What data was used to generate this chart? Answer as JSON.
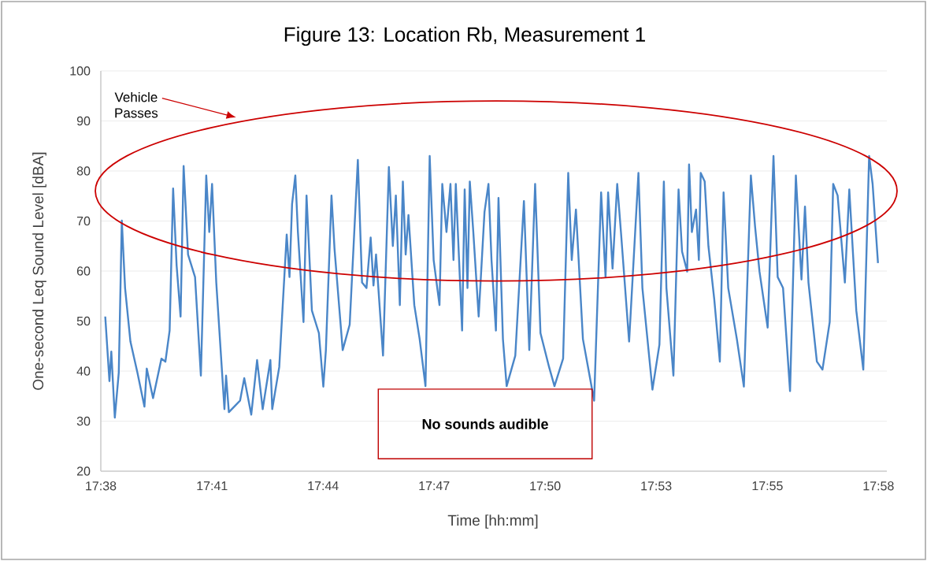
{
  "chart_data": {
    "type": "line",
    "title": "Figure 13: Location Rb, Measurement 1",
    "xlabel": "Time [hh:mm]",
    "ylabel": "One-second Leq Sound Level [dBA]",
    "annotations": [
      "Vehicle Passes",
      "No sounds audible"
    ],
    "x": [
      17.6402,
      17.642,
      17.6428,
      17.6443,
      17.646,
      17.6473,
      17.6487,
      17.651,
      17.654,
      17.657,
      17.658,
      17.6607,
      17.6643,
      17.666,
      17.6678,
      17.6693,
      17.6708,
      17.6725,
      17.6738,
      17.6757,
      17.6787,
      17.6812,
      17.6835,
      17.6848,
      17.686,
      17.6878,
      17.6913,
      17.692,
      17.6932,
      17.698,
      17.6998,
      17.7028,
      17.7053,
      17.7077,
      17.711,
      17.7118,
      17.7148,
      17.718,
      17.7192,
      17.7203,
      17.7217,
      17.7228,
      17.7252,
      17.7265,
      17.7288,
      17.7318,
      17.7337,
      17.7348,
      17.7372,
      17.7385,
      17.742,
      17.745,
      17.7485,
      17.7503,
      17.7522,
      17.754,
      17.7552,
      17.7563,
      17.7593,
      17.7618,
      17.7635,
      17.7648,
      17.7665,
      17.7678,
      17.769,
      17.7702,
      17.7727,
      17.775,
      17.7775,
      17.7793,
      17.781,
      17.7835,
      17.7847,
      17.7865,
      17.7882,
      17.7895,
      17.7905,
      17.7932,
      17.7943,
      17.7955,
      17.7965,
      17.798,
      17.8003,
      17.8028,
      17.8045,
      17.8058,
      17.8077,
      17.8088,
      17.8107,
      17.8123,
      17.816,
      17.8197,
      17.822,
      17.8245,
      17.8268,
      17.8305,
      17.8328,
      17.8365,
      17.8387,
      17.8402,
      17.842,
      17.845,
      17.8498,
      17.8528,
      17.8547,
      17.8558,
      17.8577,
      17.8597,
      17.8613,
      17.8648,
      17.8688,
      17.8705,
      17.8748,
      17.8778,
      17.8797,
      17.8808,
      17.8838,
      17.886,
      17.8875,
      17.8897,
      17.8905,
      17.8917,
      17.8935,
      17.8947,
      17.8955,
      17.8972,
      17.8988,
      17.9013,
      17.9037,
      17.9053,
      17.9073,
      17.911,
      17.914,
      17.917,
      17.9188,
      17.9207,
      17.9242,
      17.9267,
      17.9285,
      17.9308,
      17.9338,
      17.9363,
      17.9387,
      17.9402,
      17.9417,
      17.9453,
      17.9477,
      17.9508,
      17.9523,
      17.9542,
      17.9573,
      17.9592,
      17.9622,
      17.9652,
      17.9677,
      17.9692,
      17.9715
    ],
    "series": [
      {
        "color": "#4a86c8",
        "values": [
          50.9,
          38.0,
          43.9,
          30.7,
          39.7,
          70.1,
          56.6,
          45.9,
          39.7,
          32.9,
          40.5,
          34.6,
          42.5,
          41.9,
          48.1,
          76.5,
          61.1,
          50.9,
          81.0,
          63.3,
          58.8,
          39.1,
          79.1,
          67.8,
          77.4,
          57.7,
          32.4,
          39.1,
          31.8,
          34.1,
          38.6,
          31.3,
          42.2,
          32.4,
          42.2,
          32.4,
          40.8,
          67.3,
          58.8,
          73.4,
          79.1,
          67.8,
          49.8,
          75.1,
          52.1,
          47.6,
          36.9,
          44.2,
          75.1,
          64.4,
          44.2,
          49.3,
          82.2,
          57.7,
          56.6,
          66.7,
          57.1,
          63.3,
          43.1,
          80.8,
          65.0,
          75.1,
          53.2,
          77.9,
          63.3,
          71.2,
          53.2,
          46.4,
          37.0,
          83.0,
          62.2,
          53.2,
          77.4,
          67.8,
          77.4,
          62.2,
          77.4,
          48.1,
          76.3,
          56.6,
          77.9,
          67.8,
          50.9,
          71.8,
          77.4,
          62.2,
          48.1,
          74.6,
          46.4,
          37.0,
          43.1,
          74.0,
          44.2,
          77.4,
          47.6,
          40.8,
          37.0,
          42.5,
          79.6,
          62.2,
          72.3,
          46.4,
          34.1,
          75.7,
          58.8,
          75.7,
          60.5,
          77.4,
          67.8,
          45.9,
          79.6,
          56.6,
          36.3,
          45.3,
          77.9,
          56.6,
          39.1,
          76.3,
          63.9,
          59.9,
          81.3,
          67.8,
          72.3,
          62.2,
          79.6,
          77.9,
          65.0,
          54.4,
          41.9,
          75.7,
          56.6,
          46.4,
          36.9,
          79.1,
          68.9,
          59.9,
          48.7,
          83.0,
          58.8,
          56.6,
          36.0,
          79.1,
          58.3,
          72.9,
          57.7,
          41.9,
          40.3,
          49.8,
          77.4,
          75.1,
          57.7,
          76.3,
          52.1,
          40.3,
          83.0,
          77.4,
          61.6
        ]
      }
    ],
    "xlim": [
      17.6383,
      17.9753
    ],
    "ylim": [
      20,
      100
    ],
    "xticks": [
      {
        "value": 17.6383,
        "label": "17:38"
      },
      {
        "value": 17.686,
        "label": "17:41"
      },
      {
        "value": 17.7336,
        "label": "17:44"
      },
      {
        "value": 17.7812,
        "label": "17:47"
      },
      {
        "value": 17.8288,
        "label": "17:50"
      },
      {
        "value": 17.8764,
        "label": "17:53"
      },
      {
        "value": 17.9241,
        "label": "17:55"
      },
      {
        "value": 17.9717,
        "label": "17:58"
      }
    ],
    "yticks": [
      20,
      30,
      40,
      50,
      60,
      70,
      80,
      90,
      100
    ],
    "grid": "y"
  }
}
